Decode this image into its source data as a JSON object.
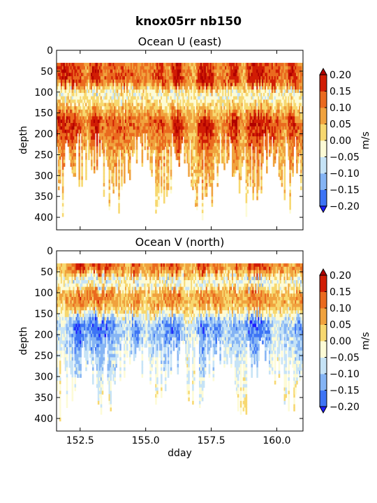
{
  "figure": {
    "suptitle": "knox05rr nb150"
  },
  "chart_data": [
    {
      "type": "heatmap",
      "title": "Ocean U (east)",
      "xlabel": "",
      "ylabel": "depth",
      "xlim": [
        151.6,
        161.0
      ],
      "ylim": [
        430,
        0
      ],
      "y_reversed": true,
      "x_ticks": [
        152.5,
        155.0,
        157.5,
        160.0
      ],
      "x_tick_labels_shown": false,
      "y_ticks": [
        0,
        50,
        100,
        150,
        200,
        250,
        300,
        350,
        400
      ],
      "y_tick_labels": [
        "0",
        "50",
        "100",
        "150",
        "200",
        "250",
        "300",
        "350",
        "400"
      ],
      "data_depth_range": [
        30,
        400
      ],
      "colorbar": {
        "label": "m/s",
        "ticks": [
          "0.20",
          "0.15",
          "0.10",
          "0.05",
          "0.00",
          "−0.05",
          "−0.10",
          "−0.15",
          "−0.20"
        ],
        "levels": [
          -0.2,
          -0.15,
          -0.1,
          -0.05,
          0.0,
          0.05,
          0.1,
          0.15,
          0.2
        ],
        "extend": "both",
        "colors": [
          "#1d1dff",
          "#3d74f5",
          "#85b4f4",
          "#c6e3f6",
          "#fdfbd6",
          "#f7d870",
          "#f0a23e",
          "#ea6a1f",
          "#d11d05",
          "#b00000"
        ]
      },
      "profile": [
        {
          "depth": 40,
          "value": 0.12
        },
        {
          "depth": 70,
          "value": 0.14
        },
        {
          "depth": 100,
          "value": -0.04
        },
        {
          "depth": 130,
          "value": 0.03
        },
        {
          "depth": 170,
          "value": 0.14
        },
        {
          "depth": 200,
          "value": 0.11
        },
        {
          "depth": 240,
          "value": 0.07
        },
        {
          "depth": 290,
          "value": 0.05
        },
        {
          "depth": 340,
          "value": 0.03
        },
        {
          "depth": 380,
          "value": 0.0
        }
      ]
    },
    {
      "type": "heatmap",
      "title": "Ocean V (north)",
      "xlabel": "dday",
      "ylabel": "depth",
      "xlim": [
        151.6,
        161.0
      ],
      "ylim": [
        430,
        0
      ],
      "y_reversed": true,
      "x_ticks": [
        152.5,
        155.0,
        157.5,
        160.0
      ],
      "x_tick_labels": [
        "152.5",
        "155.0",
        "157.5",
        "160.0"
      ],
      "y_ticks": [
        0,
        50,
        100,
        150,
        200,
        250,
        300,
        350,
        400
      ],
      "y_tick_labels": [
        "0",
        "50",
        "100",
        "150",
        "200",
        "250",
        "300",
        "350",
        "400"
      ],
      "data_depth_range": [
        30,
        400
      ],
      "colorbar": {
        "label": "m/s",
        "ticks": [
          "0.20",
          "0.15",
          "0.10",
          "0.05",
          "0.00",
          "−0.05",
          "−0.10",
          "−0.15",
          "−0.20"
        ],
        "levels": [
          -0.2,
          -0.15,
          -0.1,
          -0.05,
          0.0,
          0.05,
          0.1,
          0.15,
          0.2
        ],
        "extend": "both",
        "colors": [
          "#1d1dff",
          "#3d74f5",
          "#85b4f4",
          "#c6e3f6",
          "#fdfbd6",
          "#f7d870",
          "#f0a23e",
          "#ea6a1f",
          "#d11d05",
          "#b00000"
        ]
      },
      "profile": [
        {
          "depth": 40,
          "value": 0.1
        },
        {
          "depth": 70,
          "value": -0.06
        },
        {
          "depth": 100,
          "value": 0.08
        },
        {
          "depth": 130,
          "value": 0.05
        },
        {
          "depth": 170,
          "value": -0.12
        },
        {
          "depth": 200,
          "value": -0.1
        },
        {
          "depth": 240,
          "value": -0.07
        },
        {
          "depth": 290,
          "value": -0.05
        },
        {
          "depth": 340,
          "value": -0.02
        },
        {
          "depth": 380,
          "value": 0.0
        }
      ]
    }
  ]
}
